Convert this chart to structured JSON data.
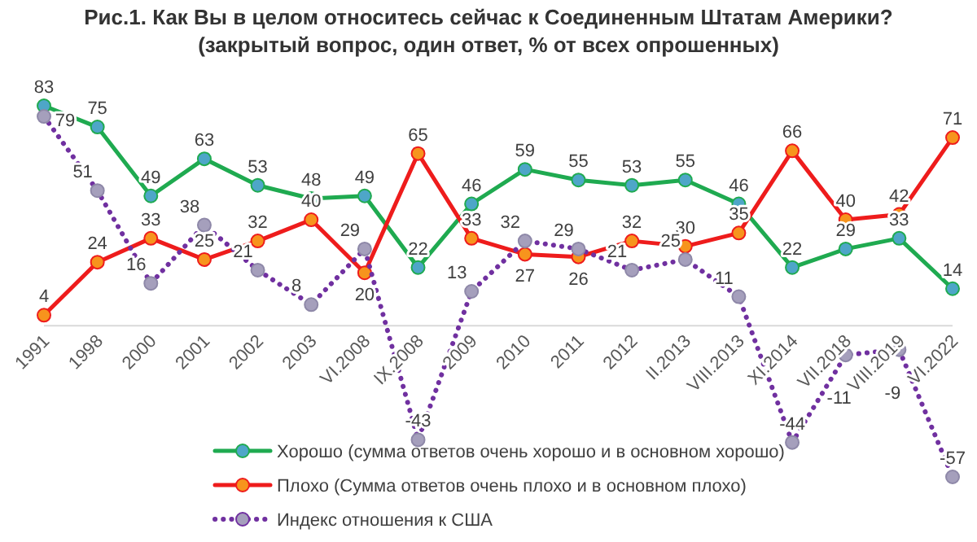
{
  "chart_data": {
    "type": "line",
    "title": "Рис.1. Как Вы в целом относитесь сейчас к Соединенным Штатам Америки?",
    "subtitle": "(закрытый вопрос, один ответ, % от всех опрошенных)",
    "categories": [
      "1991",
      "1998",
      "2000",
      "2001",
      "2002",
      "2003",
      "VI.2008",
      "IX.2008",
      "2009",
      "2010",
      "2011",
      "2012",
      "II.2013",
      "VIII.2013",
      "XI.2014",
      "VII.2018",
      "VIII.2019",
      "VI.2022"
    ],
    "series": [
      {
        "name": "Хорошо (сумма ответов очень хорошо и в основном хорошо)",
        "color": "#1faa50",
        "values": [
          83,
          75,
          49,
          63,
          53,
          48,
          49,
          22,
          46,
          59,
          55,
          53,
          55,
          46,
          22,
          29,
          33,
          14
        ]
      },
      {
        "name": "Плохо (Сумма ответов очень плохо и в основном плохо)",
        "color": "#ee1c1c",
        "values": [
          4,
          24,
          33,
          25,
          32,
          40,
          20,
          65,
          33,
          27,
          26,
          32,
          30,
          35,
          66,
          40,
          42,
          71
        ]
      },
      {
        "name": "Индекс отношения к США",
        "color": "#7030a0",
        "line_style": "dotted",
        "values": [
          79,
          51,
          16,
          38,
          21,
          8,
          29,
          -43,
          13,
          32,
          29,
          21,
          25,
          11,
          -44,
          -11,
          -9,
          -57
        ]
      }
    ],
    "tick_labels": "x",
    "data_labels": true,
    "marker": "circle",
    "line_style": "solid",
    "legend": "bottom"
  }
}
